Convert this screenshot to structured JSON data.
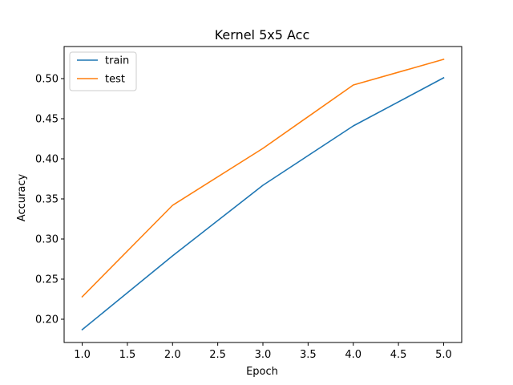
{
  "chart_data": {
    "type": "line",
    "title": "Kernel 5x5 Acc",
    "xlabel": "Epoch",
    "ylabel": "Accuracy",
    "xlim": [
      0.8,
      5.2
    ],
    "ylim": [
      0.171,
      0.54
    ],
    "xticks": [
      "1.0",
      "1.5",
      "2.0",
      "2.5",
      "3.0",
      "3.5",
      "4.0",
      "4.5",
      "5.0"
    ],
    "yticks": [
      "0.20",
      "0.25",
      "0.30",
      "0.35",
      "0.40",
      "0.45",
      "0.50"
    ],
    "x": [
      1,
      2,
      3,
      4,
      5
    ],
    "series": [
      {
        "name": "train",
        "color": "#1f77b4",
        "values": [
          0.187,
          0.279,
          0.367,
          0.441,
          0.501
        ]
      },
      {
        "name": "test",
        "color": "#ff7f0e",
        "values": [
          0.228,
          0.342,
          0.413,
          0.492,
          0.524
        ]
      }
    ],
    "legend_position": "upper-left",
    "grid": false
  }
}
